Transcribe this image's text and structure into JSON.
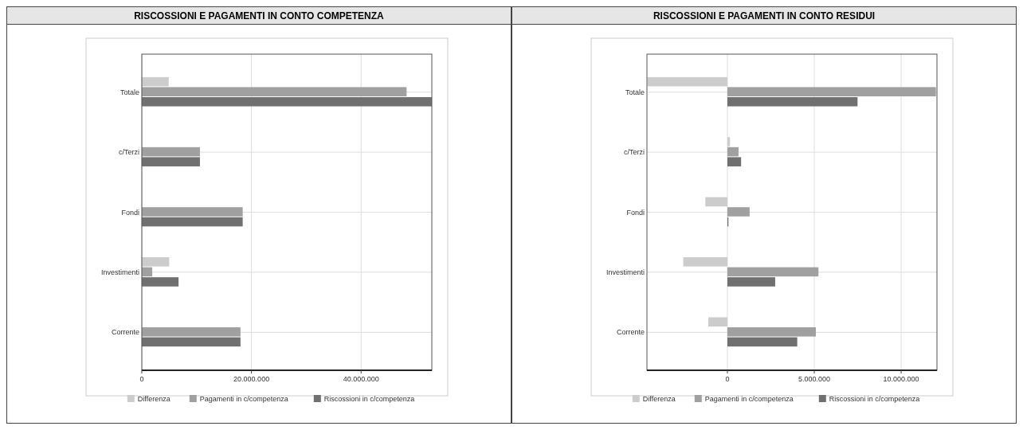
{
  "chart_data": [
    {
      "type": "bar",
      "orientation": "horizontal",
      "title": "RISCOSSIONI E PAGAMENTI IN CONTO COMPETENZA",
      "categories": [
        "Totale",
        "c/Terzi",
        "Fondi",
        "Investimenti",
        "Corrente"
      ],
      "series": [
        {
          "name": "Differenza",
          "color": "#cccccc",
          "values": [
            4900000,
            0,
            0,
            5000000,
            0
          ]
        },
        {
          "name": "Pagamenti in c/competenza",
          "color": "#a0a0a0",
          "values": [
            48300000,
            10600000,
            18400000,
            1900000,
            18000000
          ]
        },
        {
          "name": "Riscossioni in c/competenza",
          "color": "#707070",
          "values": [
            52900000,
            10600000,
            18400000,
            6700000,
            18000000
          ]
        }
      ],
      "xlim": [
        0,
        52900000
      ],
      "xticks": [
        {
          "value": 0,
          "label": "0"
        },
        {
          "value": 20000000,
          "label": "20.000.000"
        },
        {
          "value": 40000000,
          "label": "40.000.000"
        }
      ],
      "grid": true,
      "legend": "bottom"
    },
    {
      "type": "bar",
      "orientation": "horizontal",
      "title": "RISCOSSIONI E PAGAMENTI IN CONTO RESIDUI",
      "categories": [
        "Totale",
        "c/Terzi",
        "Fondi",
        "Investimenti",
        "Corrente"
      ],
      "series": [
        {
          "name": "Differenza",
          "color": "#cccccc",
          "values": [
            -4600000,
            150000,
            -1270000,
            -2540000,
            -1100000
          ]
        },
        {
          "name": "Pagamenti in c/competenza",
          "color": "#a0a0a0",
          "values": [
            12000000,
            640000,
            1280000,
            5240000,
            5090000
          ]
        },
        {
          "name": "Riscossioni in c/competenza",
          "color": "#707070",
          "values": [
            7490000,
            790000,
            60000,
            2750000,
            4020000
          ]
        }
      ],
      "xlim": [
        -4630000,
        12060000
      ],
      "xticks": [
        {
          "value": 0,
          "label": "0"
        },
        {
          "value": 5000000,
          "label": "5.000.000"
        },
        {
          "value": 10000000,
          "label": "10.000.000"
        }
      ],
      "grid": true,
      "legend": "bottom"
    }
  ]
}
